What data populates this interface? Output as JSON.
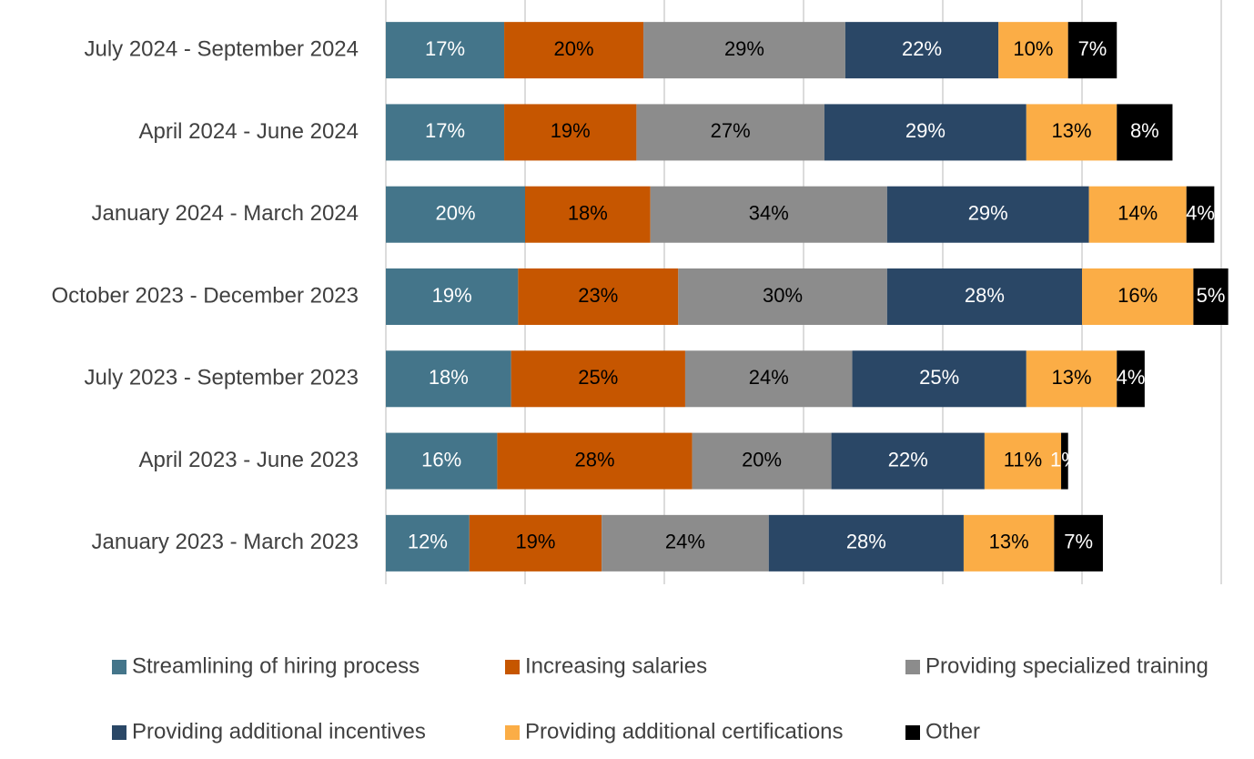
{
  "chart_data": {
    "type": "stacked_bar_horizontal",
    "categories": [
      "July 2024 - September 2024",
      "April 2024 - June 2024",
      "January 2024 - March 2024",
      "October 2023 - December 2023",
      "July 2023 - September 2023",
      "April 2023 - June 2023",
      "January 2023 - March 2023"
    ],
    "series": [
      {
        "name": "Streamlining of hiring process",
        "color": "#44758a",
        "label_color": "#ffffff",
        "values": [
          17,
          17,
          20,
          19,
          18,
          16,
          12
        ],
        "value_labels": [
          "17%",
          "17%",
          "20%",
          "19%",
          "18%",
          "16%",
          "12%"
        ]
      },
      {
        "name": "Increasing salaries",
        "color": "#c65600",
        "label_color": "#000000",
        "values": [
          20,
          19,
          18,
          23,
          25,
          28,
          19
        ],
        "value_labels": [
          "20%",
          "19%",
          "18%",
          "23%",
          "25%",
          "28%",
          "19%"
        ]
      },
      {
        "name": "Providing specialized training",
        "color": "#8c8c8c",
        "label_color": "#000000",
        "values": [
          29,
          27,
          34,
          30,
          24,
          20,
          24
        ],
        "value_labels": [
          "29%",
          "27%",
          "34%",
          "30%",
          "24%",
          "20%",
          "24%"
        ]
      },
      {
        "name": "Providing additional incentives",
        "color": "#2a4766",
        "label_color": "#ffffff",
        "values": [
          22,
          29,
          29,
          28,
          25,
          22,
          28
        ],
        "value_labels": [
          "22%",
          "29%",
          "29%",
          "28%",
          "25%",
          "22%",
          "28%"
        ]
      },
      {
        "name": "Providing additional certifications",
        "color": "#fbad46",
        "label_color": "#000000",
        "values": [
          10,
          13,
          14,
          16,
          13,
          11,
          13
        ],
        "value_labels": [
          "10%",
          "13%",
          "14%",
          "16%",
          "13%",
          "11%",
          "13%"
        ]
      },
      {
        "name": "Other",
        "color": "#000000",
        "label_color": "#ffffff",
        "values": [
          7,
          8,
          4,
          5,
          4,
          1,
          7
        ],
        "value_labels": [
          "7%",
          "8%",
          "4%",
          "5%",
          "4%",
          "1%",
          "7%"
        ]
      }
    ],
    "xlim": [
      0,
      120
    ],
    "xticks": [
      0,
      20,
      40,
      60,
      80,
      100,
      120
    ],
    "grid": true,
    "legend": "bottom"
  }
}
